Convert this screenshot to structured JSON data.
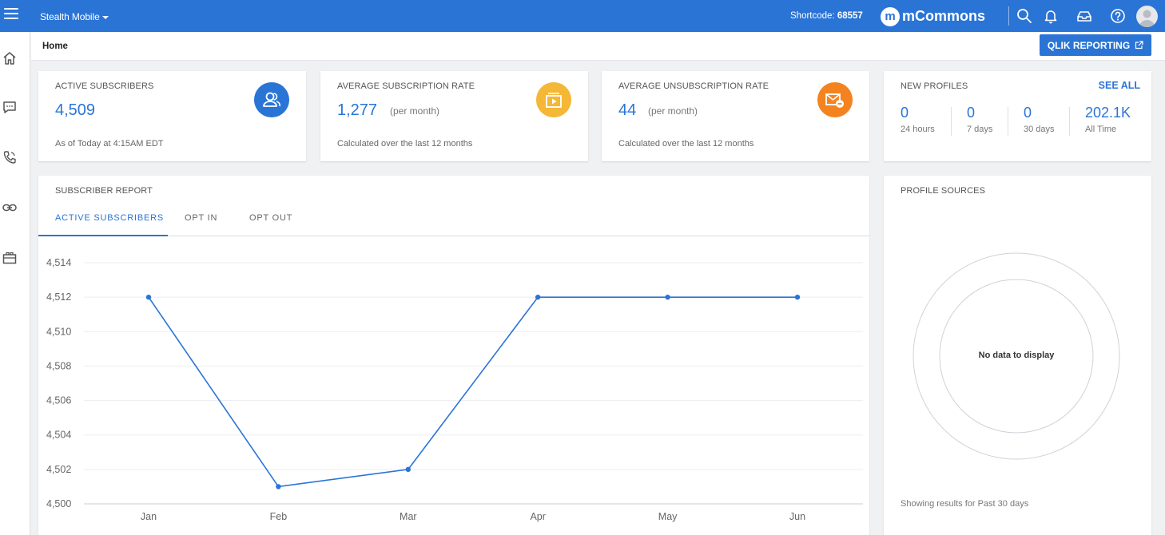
{
  "topbar": {
    "org_name": "Stealth Mobile",
    "shortcode_label": "Shortcode:",
    "shortcode_value": "68557",
    "brand_letter": "m",
    "brand_name": "mCommons"
  },
  "breadcrumb": {
    "current": "Home"
  },
  "qlik_button": {
    "label": "QLIK REPORTING"
  },
  "cards": {
    "active": {
      "label": "ACTIVE SUBSCRIBERS",
      "value": "4,509",
      "note": "As of Today at 4:15AM EDT",
      "icon": "people-icon",
      "color": "#2a74d6"
    },
    "sub_rate": {
      "label": "AVERAGE SUBSCRIPTION RATE",
      "value": "1,277",
      "unit": "(per month)",
      "note": "Calculated over the last 12 months",
      "icon": "play-icon",
      "color": "#f4b736"
    },
    "unsub_rate": {
      "label": "AVERAGE UNSUBSCRIPTION RATE",
      "value": "44",
      "unit": "(per month)",
      "note": "Calculated over the last 12 months",
      "icon": "mail-minus-icon",
      "color": "#f4831f"
    },
    "new_profiles": {
      "label": "NEW PROFILES",
      "see_all": "SEE ALL",
      "stats": [
        {
          "value": "0",
          "period": "24 hours"
        },
        {
          "value": "0",
          "period": "7 days"
        },
        {
          "value": "0",
          "period": "30 days"
        },
        {
          "value": "202.1K",
          "period": "All Time"
        }
      ]
    }
  },
  "report": {
    "label": "SUBSCRIBER REPORT",
    "tabs": [
      "ACTIVE SUBSCRIBERS",
      "OPT IN",
      "OPT OUT"
    ],
    "active_tab": 0
  },
  "chart_data": {
    "type": "line",
    "categories": [
      "Jan",
      "Feb",
      "Mar",
      "Apr",
      "May",
      "Jun"
    ],
    "series": [
      {
        "values": [
          4512,
          4501,
          4502,
          4512,
          4512,
          4512
        ]
      }
    ],
    "yticks": [
      "4,500",
      "4,502",
      "4,504",
      "4,506",
      "4,508",
      "4,510",
      "4,512",
      "4,514"
    ],
    "ylim": [
      4500,
      4514
    ],
    "grid": true,
    "color": "#2a74d6"
  },
  "profile_sources": {
    "label": "PROFILE SOURCES",
    "empty": "No data to display",
    "footer": "Showing results for Past 30 days"
  }
}
